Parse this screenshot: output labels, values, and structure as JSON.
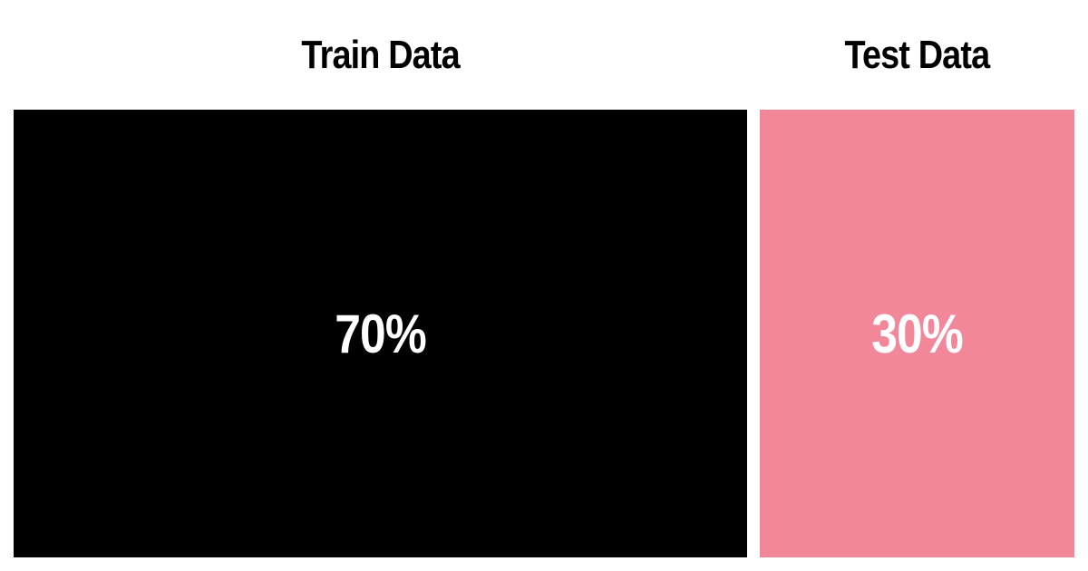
{
  "split": {
    "segments": [
      {
        "label": "Train Data",
        "value_text": "70%",
        "share": 0.7,
        "color": "#000000"
      },
      {
        "label": "Test Data",
        "value_text": "30%",
        "share": 0.3,
        "color": "#f2879a"
      }
    ]
  }
}
